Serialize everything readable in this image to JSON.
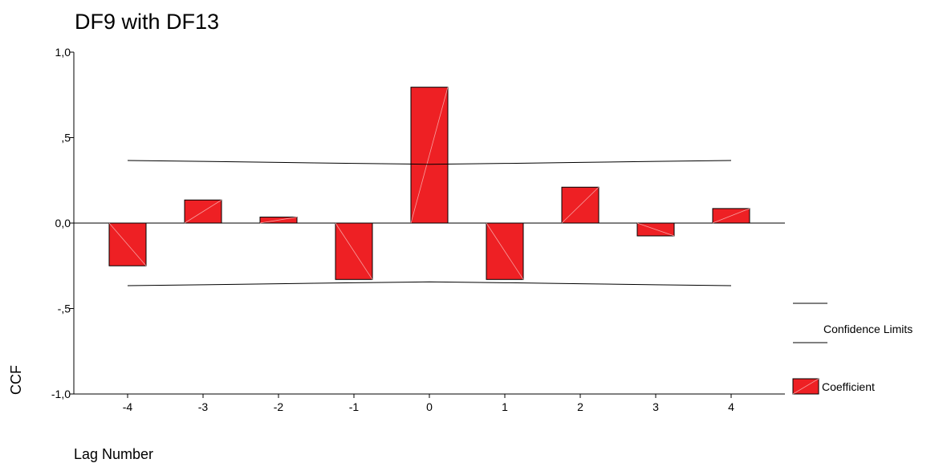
{
  "chart_data": {
    "type": "bar",
    "title": "DF9 with DF13",
    "xlabel": "Lag Number",
    "ylabel": "CCF",
    "ylim": [
      -1.0,
      1.0
    ],
    "yticks": [
      {
        "value": 1.0,
        "label": "1,0"
      },
      {
        "value": 0.5,
        "label": ",5"
      },
      {
        "value": 0.0,
        "label": "0,0"
      },
      {
        "value": -0.5,
        "label": "-,5"
      },
      {
        "value": -1.0,
        "label": "-1,0"
      }
    ],
    "categories": [
      "-4",
      "-3",
      "-2",
      "-1",
      "0",
      "1",
      "2",
      "3",
      "4"
    ],
    "series": [
      {
        "name": "Coefficient",
        "values": [
          -0.25,
          0.135,
          0.035,
          -0.33,
          0.795,
          -0.33,
          0.21,
          -0.075,
          0.085
        ],
        "color": "#ee2024"
      }
    ],
    "confidence_limits": {
      "name": "Confidence Limits",
      "upper": [
        0.366,
        0.361,
        0.355,
        0.349,
        0.344,
        0.349,
        0.355,
        0.361,
        0.366
      ],
      "lower": [
        -0.366,
        -0.361,
        -0.355,
        -0.349,
        -0.344,
        -0.349,
        -0.355,
        -0.361,
        -0.366
      ]
    },
    "legend": {
      "position": "right",
      "items": [
        {
          "label": "Confidence Limits",
          "kind": "line"
        },
        {
          "label": "Coefficient",
          "kind": "bar"
        }
      ]
    },
    "grid": false
  }
}
